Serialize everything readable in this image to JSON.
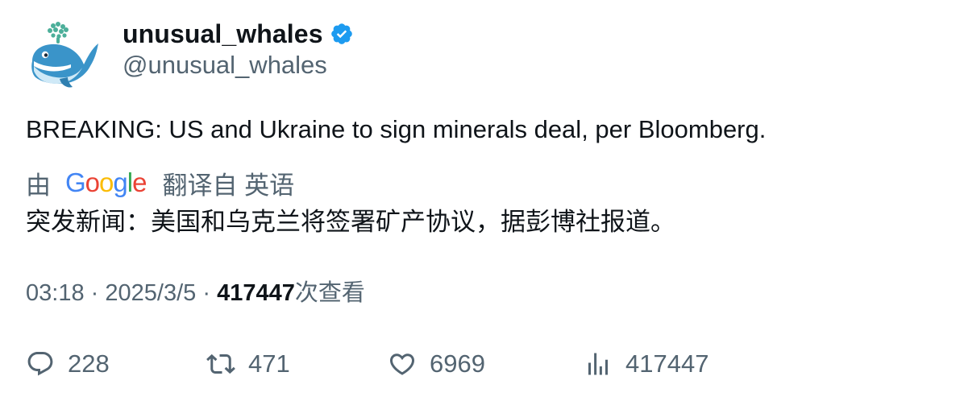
{
  "author": {
    "display_name": "unusual_whales",
    "handle": "@unusual_whales",
    "verified_color": "#1d9bf0"
  },
  "tweet": {
    "text": "BREAKING: US and Ukraine to sign minerals deal, per Bloomberg."
  },
  "translation": {
    "by_label": "由",
    "provider_logo": "Google",
    "from_label": "翻译自 英语",
    "text": "突发新闻：美国和乌克兰将签署矿产协议，据彭博社报道。"
  },
  "meta": {
    "time": "03:18",
    "separator": "·",
    "date": "2025/3/5",
    "views_count": "417447",
    "views_label": "次查看"
  },
  "actions": {
    "replies": "228",
    "retweets": "471",
    "likes": "6969",
    "views": "417447"
  },
  "icons": {
    "reply": "reply-icon",
    "retweet": "retweet-icon",
    "like": "heart-icon",
    "views": "analytics-icon",
    "verified": "verified-badge-icon"
  },
  "colors": {
    "text_primary": "#0f1419",
    "text_secondary": "#536471",
    "google_blue": "#4285f4",
    "google_red": "#ea4335",
    "google_yellow": "#fbbc05",
    "google_green": "#34a853"
  }
}
